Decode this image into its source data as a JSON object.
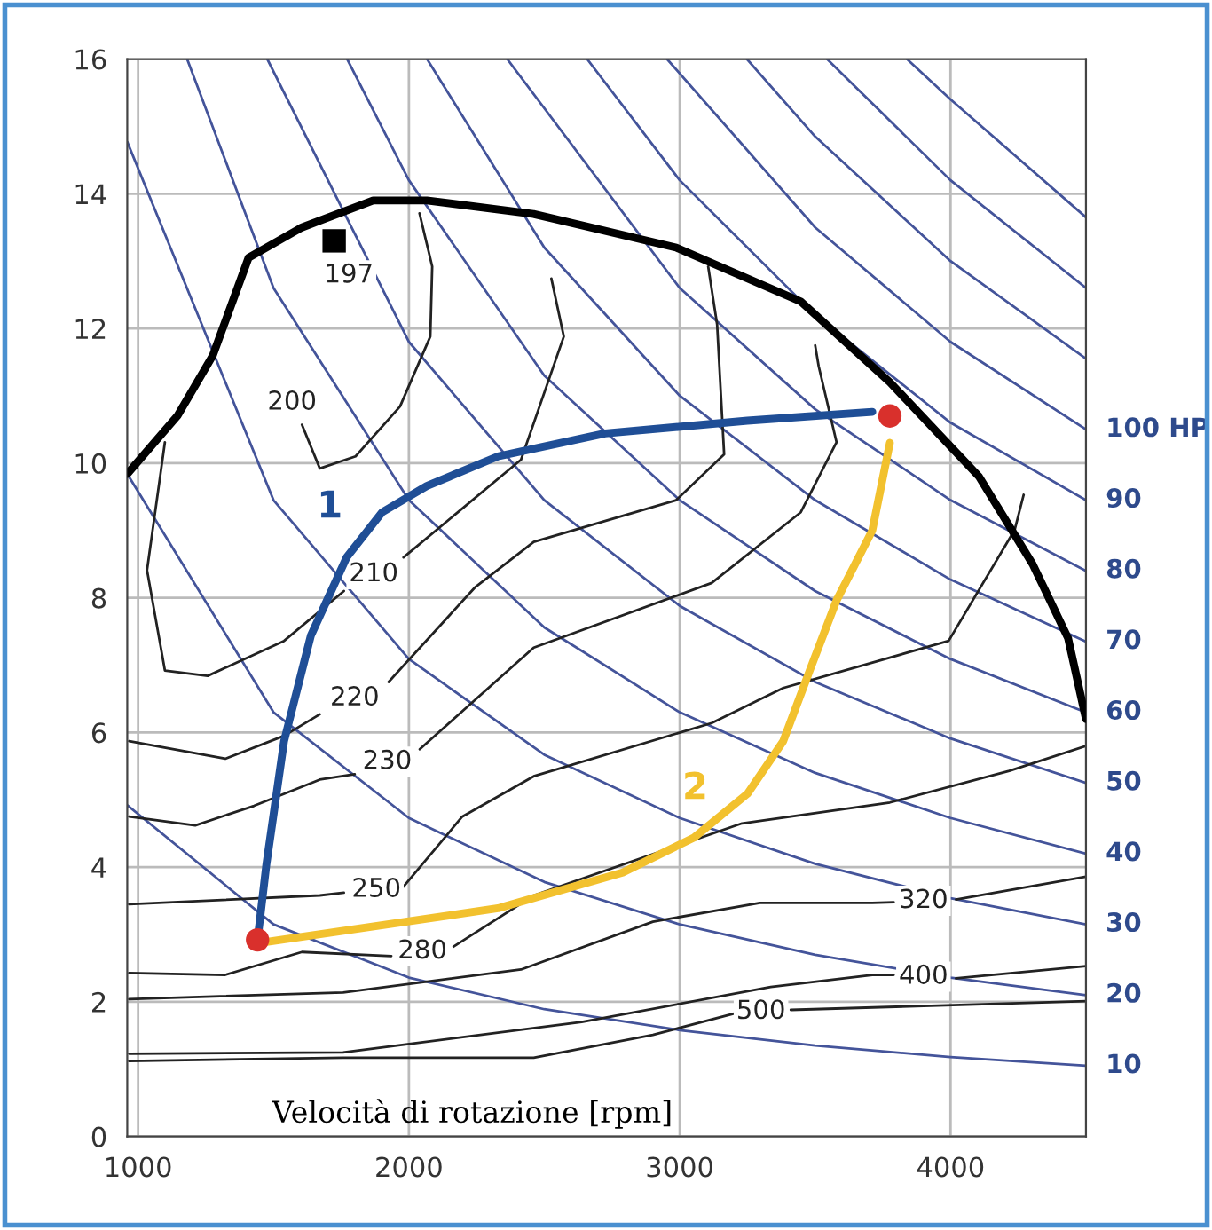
{
  "chart_data": {
    "type": "line",
    "xlabel": "Velocità di rotazione [rpm]",
    "xlim": [
      960,
      4500
    ],
    "ylim": [
      0,
      16
    ],
    "xticks": [
      1000,
      2000,
      3000,
      4000
    ],
    "yticks": [
      0,
      2,
      4,
      6,
      8,
      10,
      12,
      14,
      16
    ],
    "grid": true,
    "series": [
      {
        "color": "#000000",
        "x": [
          960,
          1145,
          1276,
          1408,
          1605,
          1868,
          2066,
          2460,
          2987,
          3447,
          3776,
          4105,
          4303,
          4434,
          4500
        ],
        "values": [
          9.84,
          10.7,
          11.6,
          13.05,
          13.5,
          13.9,
          13.9,
          13.7,
          13.2,
          12.4,
          11.2,
          9.8,
          8.5,
          7.4,
          6.2
        ]
      },
      {
        "color": "#1f4e96",
        "name": "1",
        "x": [
          1441,
          1474,
          1539,
          1638,
          1770,
          1901,
          2066,
          2329,
          2724,
          3250,
          3711
        ],
        "values": [
          2.92,
          4.05,
          5.87,
          7.44,
          8.6,
          9.27,
          9.66,
          10.1,
          10.44,
          10.63,
          10.76
        ]
      },
      {
        "color": "#f2c12e",
        "name": "2",
        "x": [
          1441,
          1803,
          2329,
          2789,
          3053,
          3250,
          3382,
          3480,
          3579,
          3711,
          3776
        ],
        "values": [
          2.87,
          3.08,
          3.39,
          3.92,
          4.44,
          5.09,
          5.87,
          6.92,
          7.96,
          9.0,
          10.3
        ]
      },
      {
        "color": "#44549a",
        "name": "10",
        "x": [
          960,
          1500,
          2000,
          2500,
          3000,
          3500,
          4000,
          4500
        ],
        "values": [
          4.92,
          3.15,
          2.36,
          1.89,
          1.58,
          1.35,
          1.18,
          1.05
        ]
      },
      {
        "color": "#44549a",
        "name": "20",
        "x": [
          960,
          1500,
          2000,
          2500,
          3000,
          3500,
          4000,
          4500
        ],
        "values": [
          9.84,
          6.3,
          4.73,
          3.78,
          3.15,
          2.7,
          2.36,
          2.1
        ]
      },
      {
        "color": "#44549a",
        "name": "30",
        "x": [
          960,
          1500,
          2000,
          2500,
          3000,
          3500,
          4000,
          4500
        ],
        "values": [
          14.77,
          9.45,
          7.09,
          5.67,
          4.73,
          4.05,
          3.54,
          3.15
        ]
      },
      {
        "color": "#44549a",
        "name": "40",
        "x": [
          1181,
          1500,
          2000,
          2500,
          3000,
          3500,
          4000,
          4500
        ],
        "values": [
          16,
          12.6,
          9.45,
          7.56,
          6.3,
          5.4,
          4.73,
          4.2
        ]
      },
      {
        "color": "#44549a",
        "name": "50",
        "x": [
          1477,
          2000,
          2500,
          3000,
          3500,
          4000,
          4500
        ],
        "values": [
          16,
          11.8,
          9.45,
          7.88,
          6.75,
          5.91,
          5.25
        ]
      },
      {
        "color": "#44549a",
        "name": "60",
        "x": [
          1772,
          2000,
          2500,
          3000,
          3500,
          4000,
          4500
        ],
        "values": [
          16,
          14.2,
          11.3,
          9.45,
          8.1,
          7.09,
          6.3
        ]
      },
      {
        "color": "#44549a",
        "name": "70",
        "x": [
          2067,
          2500,
          3000,
          3500,
          4000,
          4500
        ],
        "values": [
          16,
          13.2,
          11.0,
          9.45,
          8.27,
          7.35
        ]
      },
      {
        "color": "#44549a",
        "name": "80",
        "x": [
          2363,
          3000,
          3500,
          4000,
          4500
        ],
        "values": [
          16,
          12.6,
          10.8,
          9.45,
          8.4
        ]
      },
      {
        "color": "#44549a",
        "name": "90",
        "x": [
          2658,
          3000,
          3500,
          4000,
          4500
        ],
        "values": [
          16,
          14.2,
          12.2,
          10.6,
          9.45
        ]
      },
      {
        "color": "#44549a",
        "name": "100 HP",
        "x": [
          2953,
          3500,
          4000,
          4500
        ],
        "values": [
          16,
          13.5,
          11.8,
          10.5
        ]
      },
      {
        "color": "#44549a",
        "x": [
          3248,
          3500,
          4000,
          4500
        ],
        "values": [
          16,
          14.85,
          13.0,
          11.55
        ]
      },
      {
        "color": "#44549a",
        "x": [
          3544,
          4000,
          4500
        ],
        "values": [
          16,
          14.2,
          12.6
        ]
      },
      {
        "color": "#44549a",
        "x": [
          3839,
          4000,
          4500
        ],
        "values": [
          16,
          15.4,
          13.65
        ]
      },
      {
        "color": "#222222",
        "name": "200",
        "x": [
          1605,
          1671,
          1803,
          1967,
          2079,
          2086,
          2039
        ],
        "values": [
          10.57,
          9.92,
          10.1,
          10.84,
          11.88,
          12.92,
          13.71
        ]
      },
      {
        "color": "#222222",
        "name": "210",
        "x": [
          1099,
          1033,
          1099,
          1257,
          1539,
          1760,
          1870,
          1980,
          2414,
          2572,
          2526
        ],
        "values": [
          10.31,
          8.41,
          6.92,
          6.84,
          7.36,
          8.1,
          null,
          8.6,
          10.05,
          11.88,
          12.74
        ]
      },
      {
        "color": "#222222",
        "name": "220",
        "x": [
          967,
          1322,
          1539,
          1671,
          1800,
          1925,
          2243,
          2461,
          2987,
          3164,
          3138,
          3105
        ],
        "values": [
          5.87,
          5.61,
          5.95,
          6.27,
          null,
          6.75,
          8.15,
          8.83,
          9.45,
          10.13,
          12.06,
          12.92
        ]
      },
      {
        "color": "#222222",
        "name": "230",
        "x": [
          967,
          1211,
          1428,
          1671,
          1800,
          1920,
          2040,
          2243,
          2461,
          3118,
          3447,
          3579,
          3513,
          3500
        ],
        "values": [
          4.75,
          4.62,
          4.91,
          5.3,
          5.38,
          null,
          5.75,
          6.48,
          7.26,
          8.22,
          9.27,
          10.31,
          11.44,
          11.75
        ]
      },
      {
        "color": "#222222",
        "name": "250",
        "x": [
          967,
          1671,
          1760,
          1880,
          1980,
          2197,
          2461,
          3118,
          3382,
          3993,
          4237,
          4270
        ],
        "values": [
          3.45,
          3.58,
          3.62,
          null,
          3.71,
          4.75,
          5.35,
          6.14,
          6.66,
          7.36,
          9.01,
          9.53
        ]
      },
      {
        "color": "#222222",
        "name": "280",
        "x": [
          967,
          1322,
          1605,
          1935,
          2050,
          2165,
          2461,
          3230,
          3776,
          4217,
          4500
        ],
        "values": [
          2.43,
          2.4,
          2.74,
          2.68,
          null,
          2.82,
          3.58,
          4.65,
          4.96,
          5.43,
          5.8
        ]
      },
      {
        "color": "#222222",
        "name": "320",
        "x": [
          967,
          1757,
          2414,
          2901,
          3296,
          3711,
          3790,
          3900,
          4020,
          4500
        ],
        "values": [
          2.04,
          2.14,
          2.48,
          3.19,
          3.47,
          3.47,
          3.48,
          null,
          3.52,
          3.86
        ]
      },
      {
        "color": "#222222",
        "name": "400",
        "x": [
          967,
          1757,
          2638,
          3336,
          3711,
          3790,
          3900,
          4020,
          4500
        ],
        "values": [
          1.23,
          1.25,
          1.7,
          2.22,
          2.4,
          2.4,
          null,
          2.35,
          2.53
        ]
      },
      {
        "color": "#222222",
        "name": "500",
        "x": [
          967,
          1757,
          2461,
          2901,
          3204,
          3300,
          3410,
          4500
        ],
        "values": [
          1.12,
          1.17,
          1.17,
          1.51,
          1.83,
          null,
          1.88,
          2.01
        ]
      },
      {
        "type": "scatter",
        "color": "#d9302c",
        "marker": "circle",
        "x": [
          1441,
          3776
        ],
        "values": [
          2.92,
          10.7
        ]
      },
      {
        "type": "scatter",
        "color": "#000000",
        "marker": "square",
        "name": "197",
        "x": [
          1724
        ],
        "values": [
          13.3
        ]
      }
    ]
  }
}
